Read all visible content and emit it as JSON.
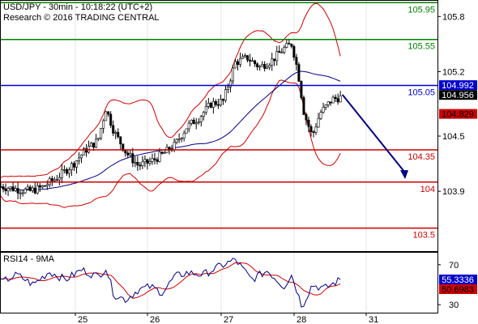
{
  "header": {
    "line1": "USD/JPY - 30min - 10:18:22 (UTC+2)",
    "line2": "Research © 2016 TRADING CENTRAL"
  },
  "chart_data": [
    {
      "type": "candlestick",
      "title": "USD/JPY - 30min",
      "x_tick_labels": [
        "25",
        "26",
        "27",
        "28",
        "31"
      ],
      "y_tick_labels": [
        "105.8",
        "105.2",
        "104.5",
        "103.9"
      ],
      "y_ticks": [
        105.8,
        105.2,
        104.5,
        103.9
      ],
      "ylim": [
        103.25,
        105.97
      ],
      "levels": [
        {
          "label": "105.95",
          "value": 105.95,
          "color": "#008000"
        },
        {
          "label": "105.55",
          "value": 105.55,
          "color": "#008000"
        },
        {
          "label": "105.05",
          "value": 105.05,
          "color": "#0000cc"
        },
        {
          "label": "104.35",
          "value": 104.35,
          "color": "#cc0000"
        },
        {
          "label": "104",
          "value": 104.0,
          "color": "#cc0000"
        },
        {
          "label": "103.5",
          "value": 103.5,
          "color": "#cc0000"
        }
      ],
      "price_tags": [
        {
          "label": "104.992",
          "value": 104.992,
          "bg": "#0000cc",
          "fg": "#ffffff"
        },
        {
          "label": "104.956",
          "value": 104.956,
          "bg": "#000000",
          "fg": "#ffffff"
        },
        {
          "label": "104.829",
          "value": 104.829,
          "bg": "#cc0000",
          "fg": "#000000"
        }
      ],
      "forecast_arrow": {
        "from": 104.95,
        "to": 104.05,
        "color": "#000080"
      },
      "price_path": [
        [
          0,
          103.95
        ],
        [
          0.03,
          103.93
        ],
        [
          0.07,
          103.9
        ],
        [
          0.1,
          103.94
        ],
        [
          0.14,
          104.05
        ],
        [
          0.18,
          104.2
        ],
        [
          0.21,
          104.35
        ],
        [
          0.24,
          104.45
        ],
        [
          0.26,
          104.8
        ],
        [
          0.28,
          104.55
        ],
        [
          0.31,
          104.32
        ],
        [
          0.34,
          104.18
        ],
        [
          0.37,
          104.22
        ],
        [
          0.4,
          104.3
        ],
        [
          0.43,
          104.4
        ],
        [
          0.46,
          104.6
        ],
        [
          0.49,
          104.7
        ],
        [
          0.52,
          104.85
        ],
        [
          0.55,
          104.88
        ],
        [
          0.58,
          105.3
        ],
        [
          0.61,
          105.35
        ],
        [
          0.64,
          105.25
        ],
        [
          0.67,
          105.32
        ],
        [
          0.7,
          105.45
        ],
        [
          0.72,
          105.5
        ],
        [
          0.735,
          105.2
        ],
        [
          0.75,
          104.75
        ],
        [
          0.77,
          104.5
        ],
        [
          0.79,
          104.75
        ],
        [
          0.82,
          104.9
        ],
        [
          0.84,
          104.92
        ]
      ],
      "rsi": {
        "label": "RSI14 - 9MA",
        "ylim": [
          22,
          82
        ],
        "y_ticks": [
          70,
          30
        ],
        "y_tick_labels": [
          "70",
          "30"
        ],
        "tags": [
          {
            "label": "55.3336",
            "value": 55.3336,
            "bg": "#0000cc",
            "fg": "#ffffff"
          },
          {
            "label": "50.6983",
            "value": 50.6983,
            "bg": "#cc0000",
            "fg": "#000000"
          }
        ],
        "path": [
          [
            0,
            52
          ],
          [
            0.04,
            60
          ],
          [
            0.08,
            50
          ],
          [
            0.12,
            63
          ],
          [
            0.16,
            55
          ],
          [
            0.2,
            65
          ],
          [
            0.24,
            58
          ],
          [
            0.26,
            67
          ],
          [
            0.28,
            40
          ],
          [
            0.31,
            35
          ],
          [
            0.34,
            45
          ],
          [
            0.37,
            48
          ],
          [
            0.4,
            42
          ],
          [
            0.43,
            58
          ],
          [
            0.46,
            62
          ],
          [
            0.5,
            60
          ],
          [
            0.54,
            68
          ],
          [
            0.58,
            75
          ],
          [
            0.62,
            55
          ],
          [
            0.66,
            64
          ],
          [
            0.7,
            48
          ],
          [
            0.72,
            60
          ],
          [
            0.745,
            28
          ],
          [
            0.77,
            50
          ],
          [
            0.8,
            46
          ],
          [
            0.84,
            55
          ]
        ]
      }
    }
  ]
}
